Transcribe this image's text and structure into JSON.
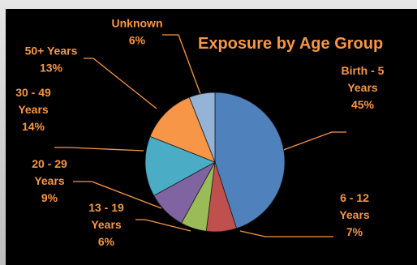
{
  "chart_data": {
    "type": "pie",
    "title": "Exposure by Age Group",
    "categories": [
      "Birth - 5 Years",
      "6 - 12 Years",
      "13 - 19 Years",
      "20 - 29 Years",
      "30 - 49 Years",
      "50+ Years",
      "Unknown"
    ],
    "values": [
      45,
      7,
      6,
      9,
      14,
      13,
      6
    ],
    "value_labels": [
      "45%",
      "7%",
      "6%",
      "9%",
      "14%",
      "13%",
      "6%"
    ],
    "label_lines": [
      [
        "Birth - 5",
        "Years",
        "45%"
      ],
      [
        "6 - 12",
        "Years",
        "7%"
      ],
      [
        "13 - 19",
        "Years",
        "6%"
      ],
      [
        "20 - 29",
        "Years",
        "9%"
      ],
      [
        "30 - 49",
        "Years",
        "14%"
      ],
      [
        "50+ Years",
        "13%"
      ],
      [
        "Unknown",
        "6%"
      ]
    ],
    "colors": [
      "#4f81bd",
      "#c0504d",
      "#9bbb59",
      "#8064a2",
      "#4bacc6",
      "#f79646",
      "#95b3d7"
    ],
    "title_color": "#f79646",
    "label_color": "#f79646",
    "leader_color": "#f79646",
    "legend": "none"
  }
}
